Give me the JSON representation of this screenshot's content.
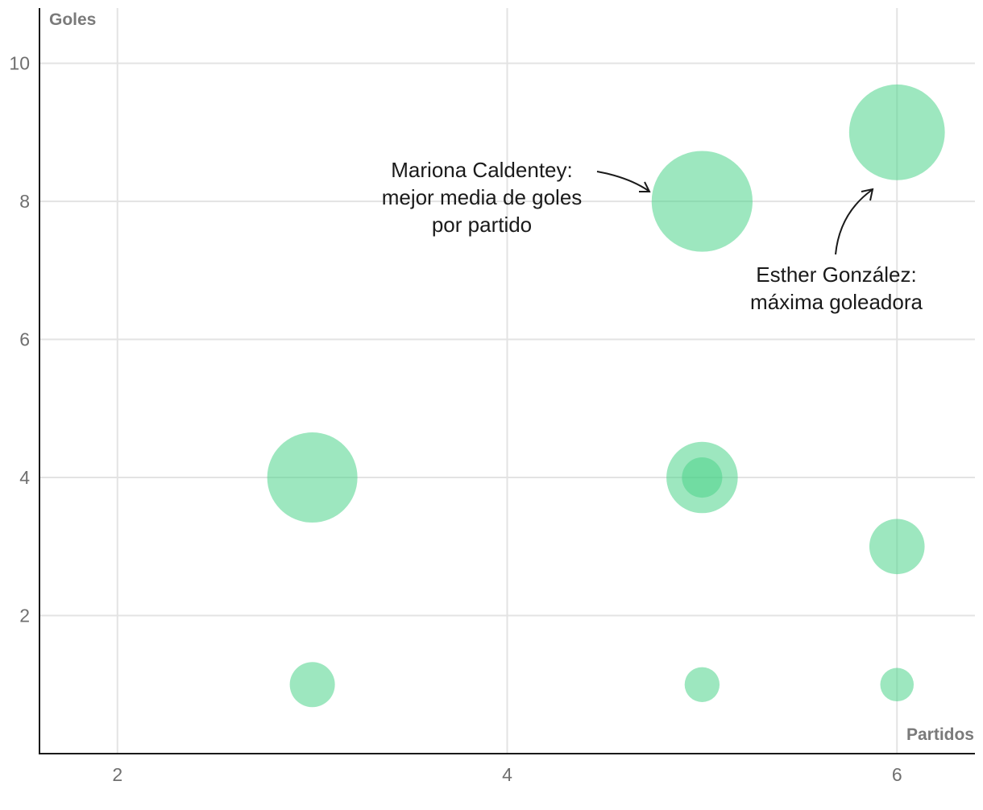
{
  "chart_data": {
    "type": "scatter",
    "xlabel": "Partidos",
    "ylabel": "Goles",
    "xlim": [
      1.6,
      6.4
    ],
    "ylim": [
      0,
      10.8
    ],
    "x_ticks": [
      2,
      4,
      6
    ],
    "y_ticks": [
      2,
      4,
      6,
      8,
      10
    ],
    "grid": true,
    "color": "#4cd38a",
    "points": [
      {
        "x": 3,
        "y": 1,
        "size": 1
      },
      {
        "x": 3,
        "y": 4,
        "size": 4
      },
      {
        "x": 5,
        "y": 1,
        "size": 0.6
      },
      {
        "x": 5,
        "y": 4,
        "size": 2.5
      },
      {
        "x": 5,
        "y": 4,
        "size": 0.8
      },
      {
        "x": 5,
        "y": 8,
        "size": 5
      },
      {
        "x": 6,
        "y": 1,
        "size": 0.55
      },
      {
        "x": 6,
        "y": 3,
        "size": 1.5
      },
      {
        "x": 6,
        "y": 9,
        "size": 4.5
      }
    ],
    "annotations": [
      {
        "lines": [
          "Mariona Caldentey:",
          "mejor media de goles",
          "por partido"
        ]
      },
      {
        "lines": [
          "Esther González:",
          "máxima goleadora"
        ]
      }
    ]
  }
}
